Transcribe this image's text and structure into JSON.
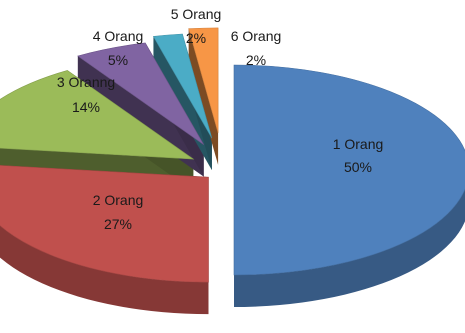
{
  "chart_data": {
    "type": "pie",
    "style": "3d-exploded",
    "title": "",
    "slices": [
      {
        "name": "1 Orang",
        "percent_label": "50%",
        "value": 50,
        "color": "#4f81bd"
      },
      {
        "name": "2 Orang",
        "percent_label": "27%",
        "value": 27,
        "color": "#c0504d"
      },
      {
        "name": "3 Oranng",
        "percent_label": "14%",
        "value": 14,
        "color": "#9bbb59"
      },
      {
        "name": "4 Orang",
        "percent_label": "5%",
        "value": 5,
        "color": "#8064a2"
      },
      {
        "name": "5 Orang",
        "percent_label": "2%",
        "value": 2,
        "color": "#4bacc6"
      },
      {
        "name": "6 Orang",
        "percent_label": "2%",
        "value": 2,
        "color": "#f79646"
      }
    ]
  }
}
